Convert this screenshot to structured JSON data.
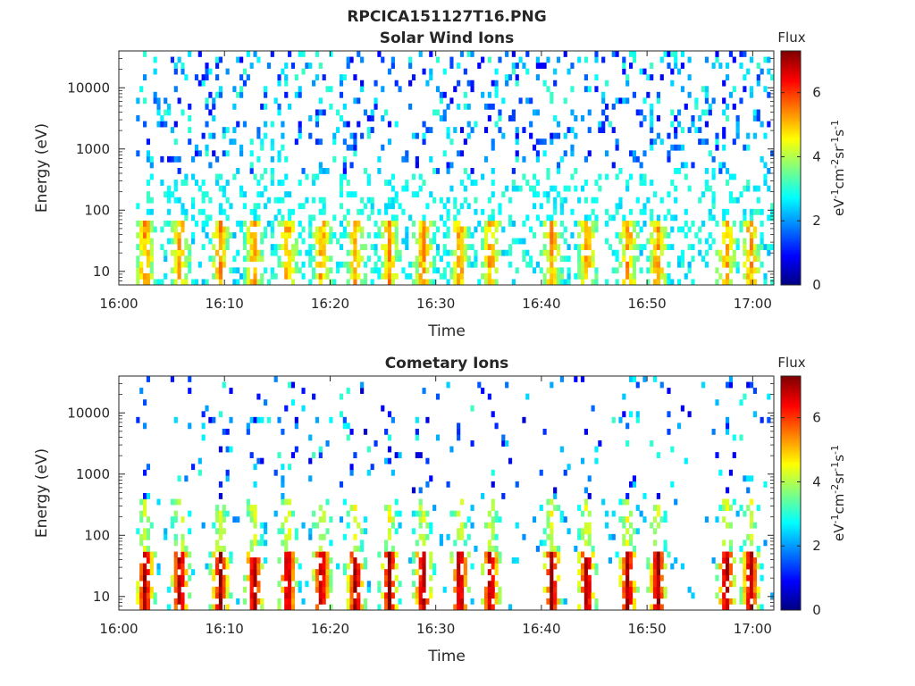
{
  "figure": {
    "title": "RPCICA151127T16.PNG"
  },
  "colors": {
    "axis": "#262626",
    "background": "#ffffff",
    "colormap": "jet"
  },
  "chart_data": [
    {
      "type": "heatmap",
      "title": "Solar Wind Ions",
      "xlabel": "Time",
      "ylabel": "Energy (eV)",
      "x_ticks": [
        "16:00",
        "16:10",
        "16:20",
        "16:30",
        "16:40",
        "16:50",
        "17:00"
      ],
      "x_tick_minutes": [
        0,
        10,
        20,
        30,
        40,
        50,
        60
      ],
      "xlim_minutes": [
        0,
        62
      ],
      "y_scale": "log",
      "y_ticks": [
        "10",
        "100",
        "1000",
        "10000"
      ],
      "y_tick_values": [
        10,
        100,
        1000,
        10000
      ],
      "ylim": [
        6,
        40000
      ],
      "colorbar": {
        "label": "Flux",
        "units": "eV-1cm-2sr-1s-1",
        "ticks": [
          "0",
          "2",
          "4",
          "6"
        ],
        "tick_values": [
          0,
          2,
          4,
          6
        ],
        "range": [
          0,
          7.3
        ]
      },
      "bursts_minutes": [
        2.5,
        5.8,
        9.6,
        12.8,
        16.0,
        19.2,
        22.4,
        25.6,
        28.8,
        32.3,
        35.2,
        41.0,
        44.3,
        48.2,
        51.0,
        57.5,
        59.8
      ],
      "grid": false
    },
    {
      "type": "heatmap",
      "title": "Cometary Ions",
      "xlabel": "Time",
      "ylabel": "Energy (eV)",
      "x_ticks": [
        "16:00",
        "16:10",
        "16:20",
        "16:30",
        "16:40",
        "16:50",
        "17:00"
      ],
      "x_tick_minutes": [
        0,
        10,
        20,
        30,
        40,
        50,
        60
      ],
      "xlim_minutes": [
        0,
        62
      ],
      "y_scale": "log",
      "y_ticks": [
        "10",
        "100",
        "1000",
        "10000"
      ],
      "y_tick_values": [
        10,
        100,
        1000,
        10000
      ],
      "ylim": [
        6,
        40000
      ],
      "colorbar": {
        "label": "Flux",
        "units": "eV-1cm-2sr-1s-1",
        "ticks": [
          "0",
          "2",
          "4",
          "6"
        ],
        "tick_values": [
          0,
          2,
          4,
          6
        ],
        "range": [
          0,
          7.3
        ]
      },
      "bursts_minutes": [
        2.5,
        5.8,
        9.6,
        12.8,
        16.0,
        19.2,
        22.4,
        25.6,
        28.8,
        32.3,
        35.2,
        41.0,
        44.3,
        48.2,
        51.0,
        57.5,
        59.8
      ],
      "grid": false
    }
  ]
}
